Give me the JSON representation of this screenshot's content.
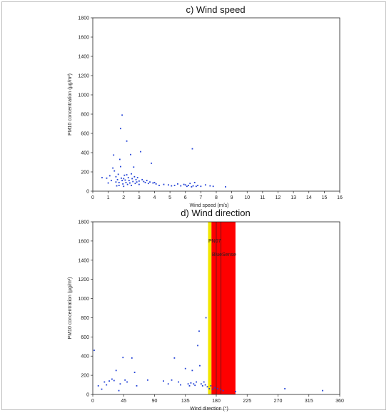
{
  "chart_data": [
    {
      "type": "scatter",
      "title": "c)  Wind speed",
      "xlabel": "Wind speed (m/s)",
      "ylabel": "PM10 concentration (µg/m³)",
      "xlim": [
        0,
        16
      ],
      "ylim": [
        0,
        1800
      ],
      "xticks": [
        "0",
        "1",
        "2",
        "3",
        "4",
        "5",
        "6",
        "7",
        "8",
        "9",
        "10",
        "11",
        "12",
        "13",
        "14",
        "15",
        "16"
      ],
      "yticks": [
        "0",
        "200",
        "400",
        "600",
        "800",
        "1000",
        "1200",
        "1400",
        "1600",
        "1800"
      ],
      "grid": false,
      "point_color": "#1f3fd6",
      "points": [
        [
          0.6,
          140
        ],
        [
          0.9,
          135
        ],
        [
          1.0,
          85
        ],
        [
          1.1,
          160
        ],
        [
          1.2,
          110
        ],
        [
          1.3,
          240
        ],
        [
          1.35,
          375
        ],
        [
          1.4,
          210
        ],
        [
          1.5,
          150
        ],
        [
          1.5,
          95
        ],
        [
          1.55,
          55
        ],
        [
          1.6,
          120
        ],
        [
          1.65,
          175
        ],
        [
          1.7,
          90
        ],
        [
          1.7,
          60
        ],
        [
          1.75,
          330
        ],
        [
          1.8,
          650
        ],
        [
          1.8,
          255
        ],
        [
          1.85,
          135
        ],
        [
          1.9,
          790
        ],
        [
          1.9,
          110
        ],
        [
          1.95,
          75
        ],
        [
          2.0,
          130
        ],
        [
          2.0,
          50
        ],
        [
          2.05,
          165
        ],
        [
          2.1,
          115
        ],
        [
          2.15,
          90
        ],
        [
          2.2,
          520
        ],
        [
          2.2,
          170
        ],
        [
          2.25,
          70
        ],
        [
          2.3,
          140
        ],
        [
          2.35,
          110
        ],
        [
          2.4,
          85
        ],
        [
          2.45,
          380
        ],
        [
          2.5,
          180
        ],
        [
          2.5,
          60
        ],
        [
          2.55,
          130
        ],
        [
          2.6,
          100
        ],
        [
          2.65,
          250
        ],
        [
          2.7,
          150
        ],
        [
          2.75,
          80
        ],
        [
          2.8,
          120
        ],
        [
          2.85,
          95
        ],
        [
          2.9,
          140
        ],
        [
          3.0,
          105
        ],
        [
          3.0,
          70
        ],
        [
          3.1,
          410
        ],
        [
          3.2,
          120
        ],
        [
          3.3,
          100
        ],
        [
          3.4,
          90
        ],
        [
          3.5,
          110
        ],
        [
          3.6,
          80
        ],
        [
          3.7,
          95
        ],
        [
          3.8,
          290
        ],
        [
          3.9,
          85
        ],
        [
          4.0,
          90
        ],
        [
          4.1,
          75
        ],
        [
          4.3,
          60
        ],
        [
          4.6,
          70
        ],
        [
          4.9,
          65
        ],
        [
          5.1,
          55
        ],
        [
          5.3,
          60
        ],
        [
          5.5,
          75
        ],
        [
          5.7,
          55
        ],
        [
          5.9,
          70
        ],
        [
          6.0,
          65
        ],
        [
          6.1,
          50
        ],
        [
          6.2,
          60
        ],
        [
          6.3,
          80
        ],
        [
          6.4,
          45
        ],
        [
          6.45,
          440
        ],
        [
          6.5,
          55
        ],
        [
          6.6,
          90
        ],
        [
          6.7,
          50
        ],
        [
          6.8,
          60
        ],
        [
          7.0,
          50
        ],
        [
          7.3,
          65
        ],
        [
          7.6,
          55
        ],
        [
          7.8,
          50
        ],
        [
          8.6,
          45
        ]
      ]
    },
    {
      "type": "scatter",
      "title": "d)  Wind direction",
      "xlabel": "Wind direction (°)",
      "ylabel": "PM10 concentration (µg/m³)",
      "xlim": [
        0,
        360
      ],
      "ylim": [
        0,
        1800
      ],
      "xticks": [
        "0",
        "45",
        "90",
        "135",
        "180",
        "225",
        "270",
        "315",
        "360"
      ],
      "yticks": [
        "0",
        "200",
        "400",
        "600",
        "800",
        "1000",
        "1200",
        "1400",
        "1600",
        "1800"
      ],
      "grid": false,
      "point_color": "#1f3fd6",
      "annotations": [
        "PN07",
        "BlueSense"
      ],
      "bands": [
        {
          "from": 168,
          "to": 173,
          "color": "#f2e600"
        },
        {
          "from": 173,
          "to": 208,
          "color": "#ff0000"
        }
      ],
      "band_lines": [
        180,
        187
      ],
      "points": [
        [
          2,
          460
        ],
        [
          8,
          90
        ],
        [
          13,
          55
        ],
        [
          17,
          130
        ],
        [
          20,
          100
        ],
        [
          24,
          140
        ],
        [
          28,
          160
        ],
        [
          31,
          145
        ],
        [
          34,
          250
        ],
        [
          38,
          40
        ],
        [
          40,
          110
        ],
        [
          44,
          385
        ],
        [
          47,
          150
        ],
        [
          50,
          130
        ],
        [
          57,
          380
        ],
        [
          61,
          230
        ],
        [
          64,
          90
        ],
        [
          80,
          150
        ],
        [
          103,
          140
        ],
        [
          110,
          110
        ],
        [
          115,
          150
        ],
        [
          119,
          380
        ],
        [
          125,
          130
        ],
        [
          128,
          100
        ],
        [
          135,
          270
        ],
        [
          139,
          110
        ],
        [
          141,
          90
        ],
        [
          143,
          120
        ],
        [
          145,
          250
        ],
        [
          147,
          110
        ],
        [
          149,
          95
        ],
        [
          151,
          130
        ],
        [
          153,
          510
        ],
        [
          155,
          660
        ],
        [
          156,
          300
        ],
        [
          158,
          110
        ],
        [
          160,
          90
        ],
        [
          162,
          130
        ],
        [
          164,
          100
        ],
        [
          165,
          800
        ],
        [
          167,
          80
        ],
        [
          170,
          60
        ],
        [
          172,
          90
        ],
        [
          175,
          55
        ],
        [
          178,
          70
        ],
        [
          182,
          60
        ],
        [
          186,
          50
        ],
        [
          190,
          40
        ],
        [
          208,
          30
        ],
        [
          280,
          60
        ],
        [
          335,
          40
        ]
      ]
    }
  ]
}
